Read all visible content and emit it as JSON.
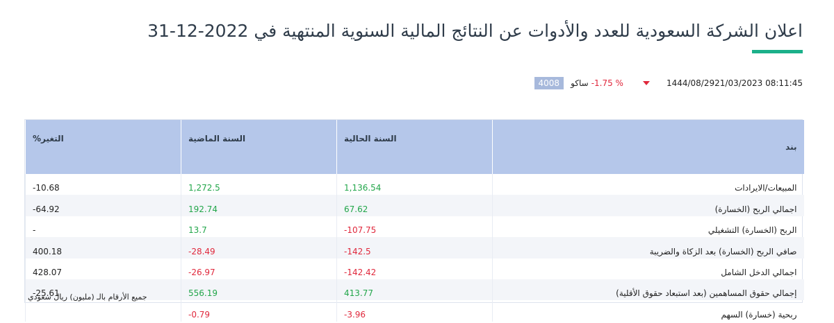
{
  "header": {
    "title": "اعلان الشركة السعودية للعدد والأدوات عن النتائج المالية السنوية المنتهية في 2022-12-31"
  },
  "info": {
    "code": "4008",
    "symbol": "ساكو",
    "change": "-1.75 %",
    "hijri_date": "1444/08/29",
    "datetime": "21/03/2023 08:11:45"
  },
  "colors": {
    "accent": "#1bb08a",
    "header_bg": "#b5c7ea",
    "positive": "#22a64a",
    "negative": "#e0283c"
  },
  "table": {
    "headers": {
      "item": "بند",
      "current": "السنة الحالية",
      "previous": "السنة الماضية",
      "change": "التغير%"
    },
    "rows": [
      {
        "item": "المبيعات/الايرادات",
        "current": "1,136.54",
        "previous": "1,272.5",
        "change": "-10.68",
        "current_sign": "pos",
        "previous_sign": "pos"
      },
      {
        "item": "اجمالي الربح (الخسارة)",
        "current": "67.62",
        "previous": "192.74",
        "change": "-64.92",
        "current_sign": "pos",
        "previous_sign": "pos"
      },
      {
        "item": "الربح (الخسارة) التشغيلي",
        "current": "-107.75",
        "previous": "13.7",
        "change": "-",
        "current_sign": "neg",
        "previous_sign": "pos"
      },
      {
        "item": "صافي الربح (الخسارة) بعد الزكاة والضريبة",
        "current": "-142.5",
        "previous": "-28.49",
        "change": "400.18",
        "current_sign": "neg",
        "previous_sign": "neg"
      },
      {
        "item": "اجمالي الدخل الشامل",
        "current": "-142.42",
        "previous": "-26.97",
        "change": "428.07",
        "current_sign": "neg",
        "previous_sign": "neg"
      },
      {
        "item": "إجمالي حقوق المساهمين (بعد استبعاد حقوق الأقلية)",
        "current": "413.77",
        "previous": "556.19",
        "change": "-25.61",
        "current_sign": "pos",
        "previous_sign": "pos"
      },
      {
        "item": "ربحية (خسارة) السهم",
        "current": "-3.96",
        "previous": "-0.79",
        "change": "",
        "current_sign": "neg",
        "previous_sign": "neg"
      }
    ],
    "footnote": "جميع الأرقام بالـ (مليون) ريال سعودي"
  }
}
